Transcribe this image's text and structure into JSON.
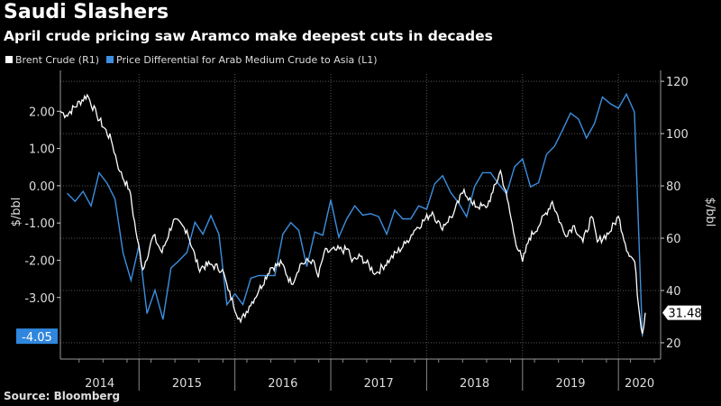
{
  "header": {
    "title": "Saudi Slashers",
    "subtitle": "April crude pricing saw Aramco make deepest cuts in decades"
  },
  "footer": {
    "source": "Source: Bloomberg"
  },
  "chart_data": {
    "type": "line",
    "title": "Saudi Slashers",
    "subtitle": "April crude pricing saw Aramco make deepest cuts in decades",
    "legend_position": "top-left",
    "grid": true,
    "left_axis": {
      "label": "$/bbl",
      "ticks": [
        "2.00",
        "1.00",
        "0.00",
        "-1.00",
        "-2.00",
        "-3.00"
      ],
      "tick_values": [
        2,
        1,
        0,
        -1,
        -2,
        -3
      ],
      "ylim": [
        -4.58,
        3.0
      ]
    },
    "right_axis": {
      "label": "$/bbl",
      "ticks": [
        "120",
        "100",
        "80",
        "60",
        "40",
        "20"
      ],
      "tick_values": [
        120,
        100,
        80,
        60,
        40,
        20
      ],
      "ylim": [
        14.8,
        122.8
      ]
    },
    "x_axis": {
      "labels": [
        "2014",
        "2015",
        "2016",
        "2017",
        "2018",
        "2019",
        "2020"
      ],
      "xlim": [
        2014.18,
        2020.44
      ]
    },
    "series": [
      {
        "name": "Brent Crude (R1)",
        "axis": "right",
        "color": "#ffffff",
        "last_value_label": "31.48",
        "x": [
          2014.18,
          2014.24,
          2014.46,
          2014.56,
          2014.71,
          2014.8,
          2014.9,
          2014.98,
          2015.04,
          2015.15,
          2015.24,
          2015.36,
          2015.5,
          2015.62,
          2015.74,
          2015.87,
          2015.93,
          2016.06,
          2016.15,
          2016.25,
          2016.37,
          2016.49,
          2016.59,
          2016.68,
          2016.81,
          2016.87,
          2016.93,
          2017.06,
          2017.19,
          2017.22,
          2017.31,
          2017.47,
          2017.62,
          2017.78,
          2017.87,
          2018.06,
          2018.15,
          2018.28,
          2018.39,
          2018.48,
          2018.62,
          2018.69,
          2018.77,
          2018.84,
          2018.92,
          2019.0,
          2019.07,
          2019.19,
          2019.31,
          2019.44,
          2019.54,
          2019.63,
          2019.72,
          2019.78,
          2019.91,
          2020.0,
          2020.1,
          2020.17,
          2020.21,
          2020.25,
          2020.28
        ],
        "values": [
          108.5,
          107,
          114.8,
          107,
          97.6,
          85.5,
          78.6,
          60,
          48,
          61,
          54.5,
          67,
          63,
          48.6,
          50,
          48,
          40,
          28,
          34,
          40,
          48.6,
          50.3,
          42.4,
          50,
          51.7,
          45,
          54.5,
          55.5,
          55.5,
          51,
          53,
          46.5,
          52,
          58,
          63,
          70,
          64,
          69.3,
          78.6,
          72.8,
          71.7,
          77.5,
          85.8,
          75,
          60,
          51,
          60,
          66,
          74,
          61.4,
          64.8,
          58.6,
          68.3,
          58.6,
          62.4,
          68.3,
          54.5,
          51,
          34,
          23.4,
          31.48
        ]
      },
      {
        "name": "Price Differential for Arab Medium Crude to Asia (L1)",
        "axis": "left",
        "color": "#3d8fe0",
        "last_value_label": "-4.05",
        "x_start": 2014.25,
        "x_step_months": 1,
        "values": [
          -0.2,
          -0.42,
          -0.15,
          -0.54,
          0.35,
          0.07,
          -0.36,
          -1.8,
          -2.54,
          -1.6,
          -3.43,
          -2.8,
          -3.59,
          -2.21,
          -2.01,
          -1.79,
          -0.98,
          -1.3,
          -0.8,
          -1.3,
          -3.19,
          -2.9,
          -3.19,
          -2.48,
          -2.41,
          -2.41,
          -2.41,
          -1.3,
          -0.99,
          -1.2,
          -2.17,
          -1.24,
          -1.33,
          -0.38,
          -1.38,
          -0.89,
          -0.54,
          -0.79,
          -0.75,
          -0.83,
          -1.3,
          -0.65,
          -0.89,
          -0.89,
          -0.54,
          -0.63,
          0.05,
          0.27,
          -0.18,
          -0.46,
          -0.83,
          -0.02,
          0.35,
          0.35,
          0.05,
          -0.22,
          0.51,
          0.72,
          -0.03,
          0.08,
          0.84,
          1.06,
          1.49,
          1.95,
          1.79,
          1.28,
          1.67,
          2.38,
          2.2,
          2.08,
          2.46,
          1.98,
          -4.05
        ]
      }
    ]
  }
}
